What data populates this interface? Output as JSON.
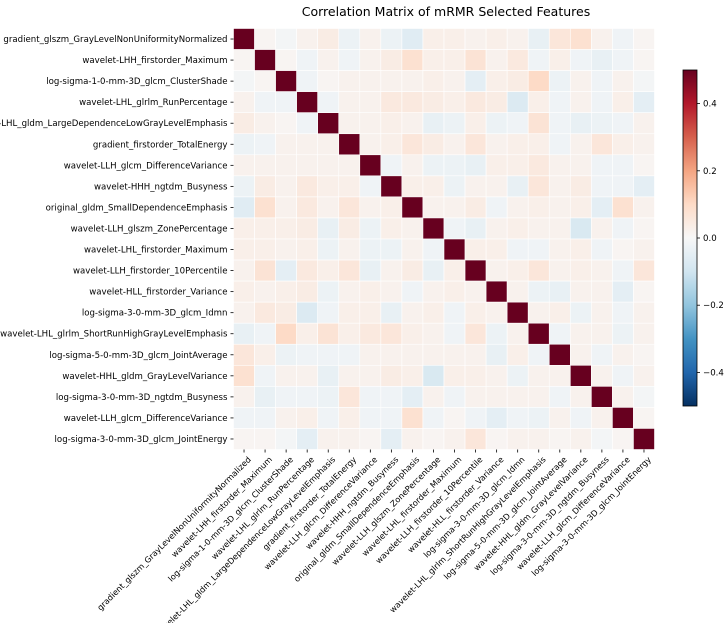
{
  "chart_data": {
    "type": "heatmap",
    "title": "Correlation Matrix of mRMR Selected Features",
    "features": [
      "gradient_glszm_GrayLevelNonUniformityNormalized",
      "wavelet-LHH_firstorder_Maximum",
      "log-sigma-1-0-mm-3D_glcm_ClusterShade",
      "wavelet-LHL_glrlm_RunPercentage",
      "wavelet-LHL_gldm_LargeDependenceLowGrayLevelEmphasis",
      "gradient_firstorder_TotalEnergy",
      "wavelet-LLH_glcm_DifferenceVariance",
      "wavelet-HHH_ngtdm_Busyness",
      "original_gldm_SmallDependenceEmphasis",
      "wavelet-LLH_glszm_ZonePercentage",
      "wavelet-LHL_firstorder_Maximum",
      "wavelet-LLH_firstorder_10Percentile",
      "wavelet-HLL_firstorder_Variance",
      "log-sigma-3-0-mm-3D_glcm_Idmn",
      "wavelet-LHL_glrlm_ShortRunHighGrayLevelEmphasis",
      "log-sigma-5-0-mm-3D_glcm_JointAverage",
      "wavelet-HHL_gldm_GrayLevelVariance",
      "log-sigma-3-0-mm-3D_ngtdm_Busyness",
      "wavelet-LLH_glcm_DifferenceVariance",
      "log-sigma-3-0-mm-3D_glcm_JointEnergy"
    ],
    "colorbar": {
      "colormap": "RdBu_r",
      "vmin": -0.5,
      "vmax": 0.5,
      "ticks": [
        0.4,
        0.2,
        0.0,
        -0.2,
        -0.4
      ],
      "tick_labels": [
        "0.4",
        "0.2",
        "0.0",
        "−0.2",
        "−0.4"
      ]
    },
    "diagonal_value": 1.0,
    "off_diagonal": [
      [
        0,
        1,
        0.01
      ],
      [
        0,
        2,
        -0.01
      ],
      [
        0,
        3,
        0.02
      ],
      [
        0,
        4,
        0.04
      ],
      [
        0,
        5,
        -0.03
      ],
      [
        0,
        6,
        0.02
      ],
      [
        0,
        7,
        -0.03
      ],
      [
        0,
        8,
        -0.06
      ],
      [
        0,
        9,
        0.03
      ],
      [
        0,
        10,
        0.03
      ],
      [
        0,
        11,
        0.02
      ],
      [
        0,
        12,
        0.03
      ],
      [
        0,
        13,
        0.02
      ],
      [
        0,
        14,
        -0.04
      ],
      [
        0,
        15,
        0.06
      ],
      [
        0,
        16,
        0.08
      ],
      [
        0,
        17,
        0.02
      ],
      [
        0,
        18,
        -0.02
      ],
      [
        0,
        19,
        0.01
      ],
      [
        1,
        2,
        0.01
      ],
      [
        1,
        3,
        -0.02
      ],
      [
        1,
        4,
        0.02
      ],
      [
        1,
        5,
        -0.02
      ],
      [
        1,
        6,
        0.02
      ],
      [
        1,
        7,
        0.04
      ],
      [
        1,
        8,
        0.08
      ],
      [
        1,
        9,
        0.03
      ],
      [
        1,
        10,
        0.03
      ],
      [
        1,
        11,
        0.07
      ],
      [
        1,
        12,
        0.02
      ],
      [
        1,
        13,
        0.05
      ],
      [
        1,
        14,
        -0.02
      ],
      [
        1,
        15,
        0.03
      ],
      [
        1,
        16,
        -0.02
      ],
      [
        1,
        17,
        -0.04
      ],
      [
        1,
        18,
        -0.02
      ],
      [
        1,
        19,
        0.01
      ],
      [
        2,
        3,
        -0.02
      ],
      [
        2,
        4,
        0.01
      ],
      [
        2,
        5,
        0.02
      ],
      [
        2,
        6,
        0.02
      ],
      [
        2,
        7,
        0.02
      ],
      [
        2,
        8,
        0.02
      ],
      [
        2,
        9,
        0.03
      ],
      [
        2,
        10,
        0.02
      ],
      [
        2,
        11,
        -0.05
      ],
      [
        2,
        12,
        0.03
      ],
      [
        2,
        13,
        0.04
      ],
      [
        2,
        14,
        0.1
      ],
      [
        2,
        15,
        -0.03
      ],
      [
        2,
        16,
        0.02
      ],
      [
        2,
        17,
        -0.02
      ],
      [
        2,
        18,
        0.02
      ],
      [
        2,
        19,
        -0.01
      ],
      [
        3,
        4,
        -0.02
      ],
      [
        3,
        5,
        0.02
      ],
      [
        3,
        6,
        0.02
      ],
      [
        3,
        7,
        0.05
      ],
      [
        3,
        8,
        0.05
      ],
      [
        3,
        9,
        0.04
      ],
      [
        3,
        10,
        0.03
      ],
      [
        3,
        11,
        0.05
      ],
      [
        3,
        12,
        0.04
      ],
      [
        3,
        13,
        -0.07
      ],
      [
        3,
        14,
        0.03
      ],
      [
        3,
        15,
        -0.02
      ],
      [
        3,
        16,
        0.02
      ],
      [
        3,
        17,
        -0.02
      ],
      [
        3,
        18,
        0.03
      ],
      [
        3,
        19,
        -0.05
      ],
      [
        4,
        5,
        0.02
      ],
      [
        4,
        6,
        0.02
      ],
      [
        4,
        7,
        0.03
      ],
      [
        4,
        8,
        0.02
      ],
      [
        4,
        9,
        -0.04
      ],
      [
        4,
        10,
        -0.03
      ],
      [
        4,
        11,
        0.03
      ],
      [
        4,
        12,
        -0.03
      ],
      [
        4,
        13,
        -0.02
      ],
      [
        4,
        14,
        0.07
      ],
      [
        4,
        15,
        -0.02
      ],
      [
        4,
        16,
        -0.04
      ],
      [
        4,
        17,
        -0.03
      ],
      [
        4,
        18,
        -0.02
      ],
      [
        4,
        19,
        0.02
      ],
      [
        5,
        6,
        0.02
      ],
      [
        5,
        7,
        0.03
      ],
      [
        5,
        8,
        0.06
      ],
      [
        5,
        9,
        0.04
      ],
      [
        5,
        10,
        0.02
      ],
      [
        5,
        11,
        0.06
      ],
      [
        5,
        12,
        0.02
      ],
      [
        5,
        13,
        0.03
      ],
      [
        5,
        14,
        0.03
      ],
      [
        5,
        15,
        -0.02
      ],
      [
        5,
        16,
        0.02
      ],
      [
        5,
        17,
        0.06
      ],
      [
        5,
        18,
        0.03
      ],
      [
        5,
        19,
        0.02
      ],
      [
        6,
        7,
        -0.02
      ],
      [
        6,
        8,
        0.02
      ],
      [
        6,
        9,
        -0.03
      ],
      [
        6,
        10,
        -0.03
      ],
      [
        6,
        11,
        -0.04
      ],
      [
        6,
        12,
        0.03
      ],
      [
        6,
        13,
        0.03
      ],
      [
        6,
        14,
        0.05
      ],
      [
        6,
        15,
        0.02
      ],
      [
        6,
        16,
        0.02
      ],
      [
        6,
        17,
        -0.02
      ],
      [
        6,
        18,
        -0.02
      ],
      [
        6,
        19,
        0.01
      ],
      [
        7,
        8,
        0.03
      ],
      [
        7,
        9,
        0.03
      ],
      [
        7,
        10,
        -0.03
      ],
      [
        7,
        11,
        0.02
      ],
      [
        7,
        12,
        0.02
      ],
      [
        7,
        13,
        -0.04
      ],
      [
        7,
        14,
        0.06
      ],
      [
        7,
        15,
        0.02
      ],
      [
        7,
        16,
        0.04
      ],
      [
        7,
        17,
        -0.02
      ],
      [
        7,
        18,
        -0.02
      ],
      [
        7,
        19,
        -0.05
      ],
      [
        8,
        9,
        0.02
      ],
      [
        8,
        10,
        0.02
      ],
      [
        8,
        11,
        0.04
      ],
      [
        8,
        12,
        -0.02
      ],
      [
        8,
        13,
        0.02
      ],
      [
        8,
        14,
        0.03
      ],
      [
        8,
        15,
        0.02
      ],
      [
        8,
        16,
        0.03
      ],
      [
        8,
        17,
        -0.05
      ],
      [
        8,
        18,
        0.08
      ],
      [
        8,
        19,
        0.02
      ],
      [
        9,
        10,
        -0.02
      ],
      [
        9,
        11,
        -0.04
      ],
      [
        9,
        12,
        0.02
      ],
      [
        9,
        13,
        0.03
      ],
      [
        9,
        14,
        0.02
      ],
      [
        9,
        15,
        0.02
      ],
      [
        9,
        16,
        -0.08
      ],
      [
        9,
        17,
        0.02
      ],
      [
        9,
        18,
        -0.02
      ],
      [
        9,
        19,
        0.01
      ],
      [
        10,
        11,
        0.03
      ],
      [
        10,
        12,
        0.03
      ],
      [
        10,
        13,
        -0.02
      ],
      [
        10,
        14,
        -0.02
      ],
      [
        10,
        15,
        0.02
      ],
      [
        10,
        16,
        0.03
      ],
      [
        10,
        17,
        -0.02
      ],
      [
        10,
        18,
        0.01
      ],
      [
        10,
        19,
        0.02
      ],
      [
        11,
        12,
        0.02
      ],
      [
        11,
        13,
        0.03
      ],
      [
        11,
        14,
        0.06
      ],
      [
        11,
        15,
        0.02
      ],
      [
        11,
        16,
        0.03
      ],
      [
        11,
        17,
        0.02
      ],
      [
        11,
        18,
        -0.02
      ],
      [
        11,
        19,
        0.06
      ],
      [
        12,
        13,
        0.02
      ],
      [
        12,
        14,
        -0.03
      ],
      [
        12,
        15,
        -0.04
      ],
      [
        12,
        16,
        0.02
      ],
      [
        12,
        17,
        0.02
      ],
      [
        12,
        18,
        -0.05
      ],
      [
        12,
        19,
        0.01
      ],
      [
        13,
        14,
        0.02
      ],
      [
        13,
        15,
        0.03
      ],
      [
        13,
        16,
        -0.03
      ],
      [
        13,
        17,
        0.02
      ],
      [
        13,
        18,
        -0.02
      ],
      [
        13,
        19,
        0.02
      ],
      [
        14,
        15,
        -0.02
      ],
      [
        14,
        16,
        0.02
      ],
      [
        14,
        17,
        0.02
      ],
      [
        14,
        18,
        -0.03
      ],
      [
        14,
        19,
        0.02
      ],
      [
        15,
        16,
        0.02
      ],
      [
        15,
        17,
        -0.02
      ],
      [
        15,
        18,
        0.02
      ],
      [
        15,
        19,
        0.01
      ],
      [
        16,
        17,
        0.02
      ],
      [
        16,
        18,
        -0.02
      ],
      [
        16,
        19,
        0.02
      ],
      [
        17,
        18,
        0.02
      ],
      [
        17,
        19,
        -0.01
      ],
      [
        18,
        19,
        0.01
      ]
    ],
    "grid": false
  }
}
